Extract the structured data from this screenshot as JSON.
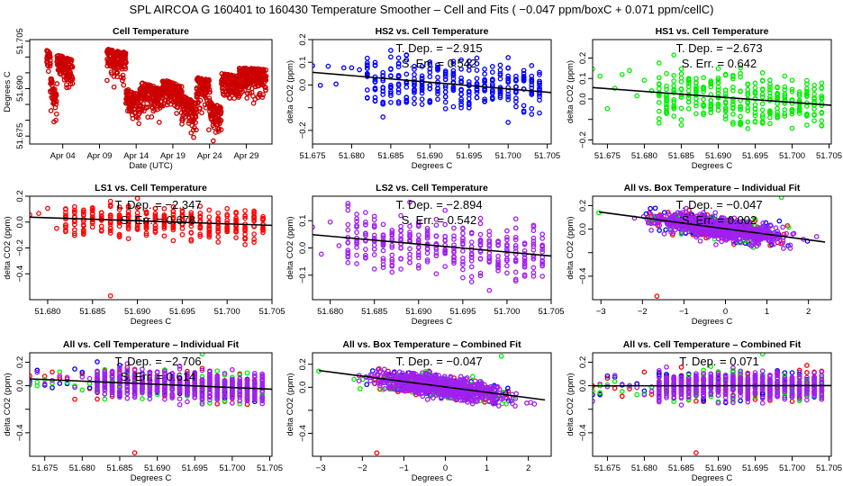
{
  "suptitle": "SPL   AIRCOA G   160401 to 160430   Temperature Smoother – Cell and Fits ( −0.047  ppm/boxC +  0.071  ppm/cellC)",
  "colors": {
    "hs2": "#0000ff",
    "hs1": "#00ee00",
    "ls1": "#ff0000",
    "ls2": "#a020f0",
    "fit": "#000000",
    "cell": "#cc0000"
  },
  "chart_data": [
    {
      "id": "cell-temp",
      "type": "scatter",
      "title": "Cell Temperature",
      "xlabel": "Date (UTC)",
      "ylabel": "Degrees C",
      "xlim": [
        -1.5,
        31.5
      ],
      "ylim": [
        51.6725,
        51.7055
      ],
      "xticks": [
        {
          "v": 3,
          "label": "Apr 04"
        },
        {
          "v": 8,
          "label": "Apr 09"
        },
        {
          "v": 13,
          "label": "Apr 14"
        },
        {
          "v": 18,
          "label": "Apr 19"
        },
        {
          "v": 23,
          "label": "Apr 24"
        },
        {
          "v": 28,
          "label": "Apr 29"
        }
      ],
      "yticks": [
        {
          "v": 51.675,
          "label": "51.675"
        },
        {
          "v": 51.68,
          "label": ""
        },
        {
          "v": 51.685,
          "label": ""
        },
        {
          "v": 51.69,
          "label": "51.690"
        },
        {
          "v": 51.695,
          "label": ""
        },
        {
          "v": 51.7,
          "label": ""
        },
        {
          "v": 51.705,
          "label": "51.705"
        }
      ],
      "series": [
        {
          "name": "cell",
          "color": "#cc0000",
          "segments": [
            [
              0.8,
              1.3,
              51.7025,
              51.7015
            ],
            [
              1.3,
              2.2,
              51.694,
              51.688
            ],
            [
              2.2,
              4.3,
              51.701,
              51.699
            ],
            [
              9.0,
              11.6,
              51.7025,
              51.7015
            ],
            [
              11.6,
              13.5,
              51.69,
              51.688
            ],
            [
              13.5,
              16.5,
              51.692,
              51.69
            ],
            [
              16.5,
              19.2,
              51.693,
              51.691
            ],
            [
              19.2,
              21.2,
              51.688,
              51.686
            ],
            [
              21.2,
              23.0,
              51.694,
              51.693
            ],
            [
              23.0,
              24.6,
              51.686,
              51.684
            ],
            [
              24.6,
              27.0,
              51.695,
              51.694
            ],
            [
              27.0,
              30.7,
              51.697,
              51.696
            ]
          ],
          "outliers": [
            [
              1.8,
              51.6795
            ],
            [
              20.5,
              51.676
            ],
            [
              23.5,
              51.6735
            ],
            [
              14.6,
              51.681
            ],
            [
              22.9,
              51.677
            ]
          ]
        }
      ]
    },
    {
      "id": "hs2-cell",
      "type": "scatter",
      "title": "HS2 vs. Cell Temperature",
      "xlabel": "Degrees C",
      "ylabel": "delta CO2 (ppm)",
      "xlim": [
        51.675,
        51.7055
      ],
      "ylim": [
        -0.26,
        0.2
      ],
      "xticks": [
        {
          "v": 51.675,
          "label": "51.675"
        },
        {
          "v": 51.68,
          "label": "51.680"
        },
        {
          "v": 51.685,
          "label": "51.685"
        },
        {
          "v": 51.69,
          "label": "51.690"
        },
        {
          "v": 51.695,
          "label": "51.695"
        },
        {
          "v": 51.7,
          "label": "51.700"
        },
        {
          "v": 51.705,
          "label": "51.705"
        }
      ],
      "yticks": [
        {
          "v": -0.2,
          "label": "−0.2"
        },
        {
          "v": -0.1,
          "label": ""
        },
        {
          "v": 0.0,
          "label": "0.0"
        },
        {
          "v": 0.1,
          "label": "0.1"
        },
        {
          "v": 0.2,
          "label": "0.2"
        }
      ],
      "fit": {
        "slope": -2.915,
        "x0": 51.69,
        "y0": 0.012
      },
      "annotation": [
        "T. Dep. =  −2.915",
        "S. Err. =  0.542"
      ],
      "series": [
        {
          "name": "HS2",
          "color": "#0000ff",
          "spread": 0.08
        }
      ]
    },
    {
      "id": "hs1-cell",
      "type": "scatter",
      "title": "HS1 vs. Cell Temperature",
      "xlabel": "Degrees C",
      "ylabel": "delta CO2 (ppm)",
      "xlim": [
        51.673,
        51.7053
      ],
      "ylim": [
        -0.22,
        0.29
      ],
      "xticks": [
        {
          "v": 51.675,
          "label": "51.675"
        },
        {
          "v": 51.68,
          "label": "51.680"
        },
        {
          "v": 51.685,
          "label": "51.685"
        },
        {
          "v": 51.69,
          "label": "51.690"
        },
        {
          "v": 51.695,
          "label": "51.695"
        },
        {
          "v": 51.7,
          "label": "51.700"
        },
        {
          "v": 51.705,
          "label": "51.705"
        }
      ],
      "yticks": [
        {
          "v": -0.2,
          "label": "−0.2"
        },
        {
          "v": -0.1,
          "label": ""
        },
        {
          "v": 0.0,
          "label": "0.0"
        },
        {
          "v": 0.1,
          "label": "0.1"
        },
        {
          "v": 0.2,
          "label": "0.2"
        }
      ],
      "fit": {
        "slope": -2.673,
        "x0": 51.69,
        "y0": 0.01
      },
      "annotation": [
        "T. Dep. =  −2.673",
        "S. Err. =  0.642"
      ],
      "series": [
        {
          "name": "HS1",
          "color": "#00ee00",
          "spread": 0.09
        }
      ]
    },
    {
      "id": "ls1-cell",
      "type": "scatter",
      "title": "LS1 vs. Cell Temperature",
      "xlabel": "Degrees C",
      "ylabel": "delta CO2 (ppm)",
      "xlim": [
        51.678,
        51.705
      ],
      "ylim": [
        -0.6,
        0.2
      ],
      "xticks": [
        {
          "v": 51.68,
          "label": "51.680"
        },
        {
          "v": 51.685,
          "label": "51.685"
        },
        {
          "v": 51.69,
          "label": "51.690"
        },
        {
          "v": 51.695,
          "label": "51.695"
        },
        {
          "v": 51.7,
          "label": "51.700"
        },
        {
          "v": 51.705,
          "label": "51.705"
        }
      ],
      "yticks": [
        {
          "v": -0.4,
          "label": "−0.4"
        },
        {
          "v": -0.2,
          "label": "−0.2"
        },
        {
          "v": 0.0,
          "label": "0.0"
        },
        {
          "v": 0.2,
          "label": "0.2"
        }
      ],
      "fit": {
        "slope": -2.347,
        "x0": 51.69,
        "y0": 0.01
      },
      "annotation": [
        "T. Dep. =  −2.347",
        "S. Err. =  0.678"
      ],
      "series": [
        {
          "name": "LS1",
          "color": "#ff0000",
          "spread": 0.09,
          "outliers": [
            [
              51.687,
              -0.57
            ]
          ]
        }
      ]
    },
    {
      "id": "ls2-cell",
      "type": "scatter",
      "title": "LS2 vs. Cell Temperature",
      "xlabel": "Degrees C",
      "ylabel": "delta CO2 (ppm)",
      "xlim": [
        51.678,
        51.705
      ],
      "ylim": [
        -0.19,
        0.19
      ],
      "xticks": [
        {
          "v": 51.68,
          "label": "51.680"
        },
        {
          "v": 51.685,
          "label": "51.685"
        },
        {
          "v": 51.69,
          "label": "51.690"
        },
        {
          "v": 51.695,
          "label": "51.695"
        },
        {
          "v": 51.7,
          "label": "51.700"
        },
        {
          "v": 51.705,
          "label": "51.705"
        }
      ],
      "yticks": [
        {
          "v": -0.1,
          "label": "−0.1"
        },
        {
          "v": 0.0,
          "label": "0.0"
        },
        {
          "v": 0.1,
          "label": "0.1"
        }
      ],
      "fit": {
        "slope": -2.894,
        "x0": 51.69,
        "y0": 0.014
      },
      "annotation": [
        "T. Dep. =  −2.894",
        "S. Err. =  0.542"
      ],
      "series": [
        {
          "name": "LS2",
          "color": "#a020f0",
          "spread": 0.075
        }
      ]
    },
    {
      "id": "all-box-individual",
      "type": "scatter",
      "title": "All vs. Box Temperature – Individual Fit",
      "xlabel": "Degrees C",
      "ylabel": "delta CO2 (ppm)",
      "xlim": [
        -3.2,
        2.55
      ],
      "ylim": [
        -0.6,
        0.28
      ],
      "xticks": [
        {
          "v": -3,
          "label": "−3"
        },
        {
          "v": -2,
          "label": "−2"
        },
        {
          "v": -1,
          "label": "−1"
        },
        {
          "v": 0,
          "label": "0"
        },
        {
          "v": 1,
          "label": "1"
        },
        {
          "v": 2,
          "label": "2"
        }
      ],
      "yticks": [
        {
          "v": -0.4,
          "label": "−0.4"
        },
        {
          "v": -0.2,
          "label": ""
        },
        {
          "v": 0.0,
          "label": "0.0"
        },
        {
          "v": 0.2,
          "label": "0.2"
        }
      ],
      "fit": {
        "slope": -0.047,
        "x0": 0,
        "y0": 0.003
      },
      "annotation": [
        "T. Dep. =  −0.047",
        "S. Err. =  0.002"
      ],
      "series": [
        {
          "name": "HS2",
          "color": "#0000ff"
        },
        {
          "name": "HS1",
          "color": "#00ee00"
        },
        {
          "name": "LS1",
          "color": "#ff0000"
        },
        {
          "name": "LS2",
          "color": "#a020f0"
        }
      ],
      "outliers": [
        [
          -1.65,
          -0.57,
          "#ff0000"
        ],
        [
          -3.05,
          0.14,
          "#00ee00"
        ],
        [
          1.35,
          0.27,
          "#00ee00"
        ]
      ]
    },
    {
      "id": "all-cell-individual",
      "type": "scatter",
      "title": "All vs. Cell Temperature – Individual Fit",
      "xlabel": "Degrees C",
      "ylabel": "delta CO2 (ppm)",
      "xlim": [
        51.673,
        51.7053
      ],
      "ylim": [
        -0.6,
        0.28
      ],
      "xticks": [
        {
          "v": 51.675,
          "label": "51.675"
        },
        {
          "v": 51.68,
          "label": "51.680"
        },
        {
          "v": 51.685,
          "label": "51.685"
        },
        {
          "v": 51.69,
          "label": "51.690"
        },
        {
          "v": 51.695,
          "label": "51.695"
        },
        {
          "v": 51.7,
          "label": "51.700"
        },
        {
          "v": 51.705,
          "label": "51.705"
        }
      ],
      "yticks": [
        {
          "v": -0.4,
          "label": "−0.4"
        },
        {
          "v": -0.2,
          "label": ""
        },
        {
          "v": 0.0,
          "label": "0.0"
        },
        {
          "v": 0.2,
          "label": "0.2"
        }
      ],
      "fit": {
        "slope": -2.706,
        "x0": 51.69,
        "y0": 0.012
      },
      "annotation": [
        "T. Dep. =  −2.706",
        "S. Err. =  0.614"
      ],
      "series": [
        {
          "name": "HS2",
          "color": "#0000ff"
        },
        {
          "name": "HS1",
          "color": "#00ee00"
        },
        {
          "name": "LS1",
          "color": "#ff0000"
        },
        {
          "name": "LS2",
          "color": "#a020f0"
        }
      ],
      "outliers": [
        [
          51.687,
          -0.57,
          "#ff0000"
        ],
        [
          51.674,
          0.0,
          "#00ee00"
        ],
        [
          51.696,
          0.27,
          "#00ee00"
        ]
      ]
    },
    {
      "id": "all-box-combined",
      "type": "scatter",
      "title": "All vs. Box Temperature – Combined Fit",
      "xlabel": "Degrees C",
      "ylabel": "delta CO2 (ppm)",
      "xlim": [
        -3.2,
        2.55
      ],
      "ylim": [
        -0.6,
        0.3
      ],
      "xticks": [
        {
          "v": -3,
          "label": "−3"
        },
        {
          "v": -2,
          "label": "−2"
        },
        {
          "v": -1,
          "label": "−1"
        },
        {
          "v": 0,
          "label": "0"
        },
        {
          "v": 1,
          "label": "1"
        },
        {
          "v": 2,
          "label": "2"
        }
      ],
      "yticks": [
        {
          "v": -0.4,
          "label": "−0.4"
        },
        {
          "v": -0.2,
          "label": ""
        },
        {
          "v": 0.0,
          "label": "0.0"
        },
        {
          "v": 0.2,
          "label": "0.2"
        }
      ],
      "fit": {
        "slope": -0.047,
        "x0": 0,
        "y0": 0.003
      },
      "annotation": [
        "T. Dep. =  −0.047"
      ],
      "series": [
        {
          "name": "HS2",
          "color": "#0000ff"
        },
        {
          "name": "HS1",
          "color": "#00ee00"
        },
        {
          "name": "LS1",
          "color": "#ff0000"
        },
        {
          "name": "LS2",
          "color": "#a020f0"
        }
      ],
      "outliers": [
        [
          -1.65,
          -0.57,
          "#ff0000"
        ],
        [
          -3.05,
          0.14,
          "#00ee00"
        ],
        [
          1.35,
          0.27,
          "#00ee00"
        ]
      ]
    },
    {
      "id": "all-cell-combined",
      "type": "scatter",
      "title": "All vs. Cell Temperature – Combined Fit",
      "xlabel": "Degrees C",
      "ylabel": "delta CO2 (ppm)",
      "xlim": [
        51.673,
        51.7053
      ],
      "ylim": [
        -0.6,
        0.28
      ],
      "xticks": [
        {
          "v": 51.675,
          "label": "51.675"
        },
        {
          "v": 51.68,
          "label": "51.680"
        },
        {
          "v": 51.685,
          "label": "51.685"
        },
        {
          "v": 51.69,
          "label": "51.690"
        },
        {
          "v": 51.695,
          "label": "51.695"
        },
        {
          "v": 51.7,
          "label": "51.700"
        },
        {
          "v": 51.705,
          "label": "51.705"
        }
      ],
      "yticks": [
        {
          "v": -0.4,
          "label": "−0.4"
        },
        {
          "v": -0.2,
          "label": ""
        },
        {
          "v": 0.0,
          "label": "0.0"
        },
        {
          "v": 0.2,
          "label": "0.2"
        }
      ],
      "fit": {
        "slope": 0.071,
        "x0": 51.69,
        "y0": 0.0
      },
      "annotation": [
        "T. Dep. =  0.071"
      ],
      "series": [
        {
          "name": "HS2",
          "color": "#0000ff"
        },
        {
          "name": "HS1",
          "color": "#00ee00"
        },
        {
          "name": "LS1",
          "color": "#ff0000"
        },
        {
          "name": "LS2",
          "color": "#a020f0"
        }
      ],
      "outliers": [
        [
          51.687,
          -0.57,
          "#ff0000"
        ],
        [
          51.674,
          0.0,
          "#00ee00"
        ],
        [
          51.696,
          0.27,
          "#00ee00"
        ]
      ]
    }
  ]
}
